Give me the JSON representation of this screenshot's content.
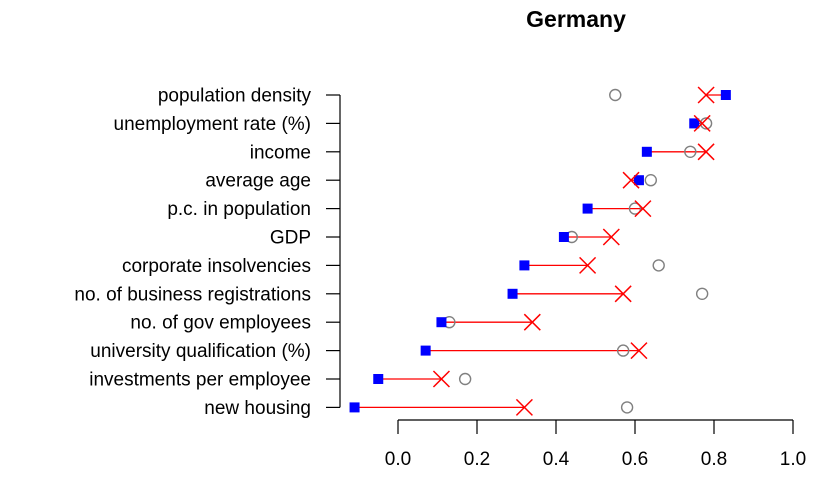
{
  "chart_data": {
    "type": "scatter",
    "title": "Germany",
    "xlabel": "",
    "ylabel": "",
    "xlim": [
      -0.15,
      1.0
    ],
    "x_ticks": [
      "0.0",
      "0.2",
      "0.4",
      "0.6",
      "0.8",
      "1.0"
    ],
    "grid": false,
    "legend": "none",
    "categories": [
      "population density",
      "unemployment rate (%)",
      "income",
      "average age",
      "p.c. in population",
      "GDP",
      "corporate insolvencies",
      "no. of business registrations",
      "no. of gov employees",
      "university qualification (%)",
      "investments per employee",
      "new housing"
    ],
    "series": [
      {
        "marker": "filled-square",
        "color": "#0000ff",
        "values": [
          0.83,
          0.75,
          0.63,
          0.61,
          0.48,
          0.42,
          0.32,
          0.29,
          0.11,
          0.07,
          -0.05,
          -0.11
        ]
      },
      {
        "marker": "x-cross",
        "color": "#ff0000",
        "values": [
          0.78,
          0.77,
          0.78,
          0.59,
          0.62,
          0.54,
          0.48,
          0.57,
          0.34,
          0.61,
          0.11,
          0.32
        ]
      },
      {
        "marker": "open-circle",
        "color": "#808080",
        "values": [
          0.55,
          0.78,
          0.74,
          0.64,
          0.6,
          0.44,
          0.66,
          0.77,
          0.13,
          0.57,
          0.17,
          0.58
        ]
      }
    ],
    "segment_color": "#ff0000"
  }
}
